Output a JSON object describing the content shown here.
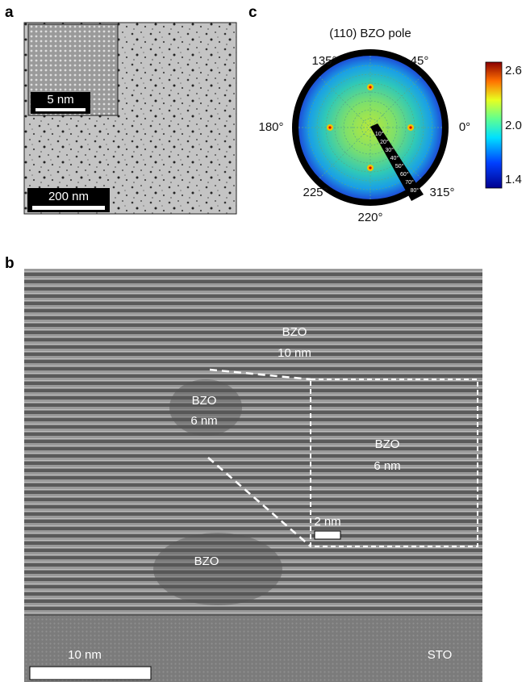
{
  "panel_a": {
    "label": "a",
    "inset_scale_bar": "5 nm",
    "scale_bar": "200 nm"
  },
  "panel_c": {
    "label": "c",
    "title": "(110) BZO pole",
    "azimuth_labels": [
      "135°",
      "45°",
      "180°",
      "0°",
      "225°",
      "315°",
      "220°"
    ],
    "tilt_labels": [
      "10°",
      "20°",
      "30°",
      "40°",
      "50°",
      "60°",
      "70°",
      "80°"
    ],
    "colorbar_ticks": [
      "2.6",
      "2.0",
      "1.4"
    ]
  },
  "panel_b": {
    "label": "b",
    "annotations": [
      "BZO",
      "10 nm",
      "BZO",
      "6 nm",
      "BZO",
      "6 nm",
      "2 nm",
      "BZO",
      "10 nm",
      "STO"
    ]
  }
}
